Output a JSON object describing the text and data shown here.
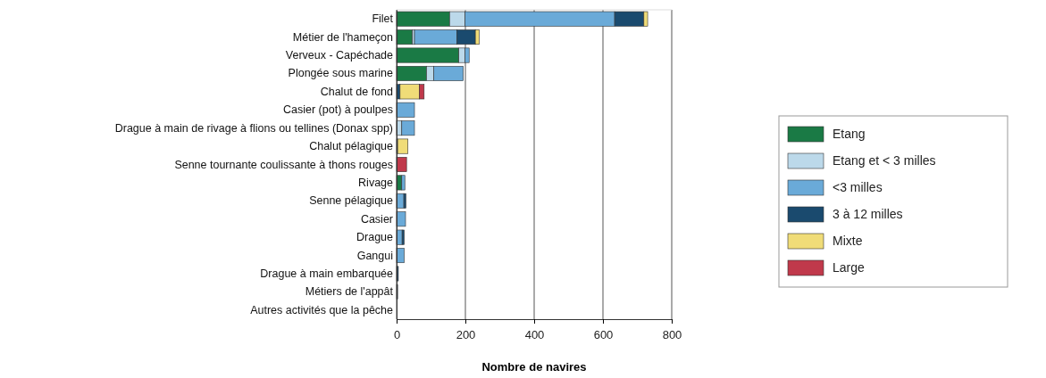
{
  "chart_data": {
    "type": "bar",
    "orientation": "horizontal",
    "stacked": true,
    "xlabel": "Nombre de navires",
    "categories": [
      "Filet",
      "Métier de l'hameçon",
      "Verveux - Capéchade",
      "Plongée sous marine",
      "Chalut de fond",
      "Casier (pot) à poulpes",
      "Drague à main de rivage à flions ou tellines (Donax spp)",
      "Chalut pélagique",
      "Senne tournante coulissante à thons rouges",
      "Rivage",
      "Senne pélagique",
      "Casier",
      "Drague",
      "Gangui",
      "Drague à main embarquée",
      "Métiers de l'appât",
      "Autres activités que la pêche"
    ],
    "series": [
      {
        "name": "Etang",
        "color": "#1a7a45",
        "values": [
          154,
          46,
          181,
          87,
          0,
          0,
          0,
          0,
          0,
          15,
          0,
          0,
          0,
          0,
          0,
          0,
          0
        ]
      },
      {
        "name": "Etang et < 3 milles",
        "color": "#bcd9ea",
        "values": [
          45,
          6,
          18,
          21,
          0,
          0,
          15,
          0,
          0,
          0,
          0,
          0,
          0,
          0,
          0,
          0,
          0
        ]
      },
      {
        "name": "<3 milles",
        "color": "#6aaad8",
        "values": [
          435,
          123,
          12,
          86,
          0,
          52,
          37,
          0,
          0,
          9,
          21,
          26,
          16,
          22,
          0,
          0,
          0
        ]
      },
      {
        "name": "3 à 12 milles",
        "color": "#1a4a6e",
        "values": [
          85,
          54,
          0,
          0,
          10,
          0,
          0,
          3,
          0,
          0,
          6,
          0,
          6,
          0,
          5,
          3,
          0
        ]
      },
      {
        "name": "Mixte",
        "color": "#f0dc78",
        "values": [
          11,
          11,
          0,
          0,
          56,
          0,
          0,
          30,
          0,
          0,
          0,
          0,
          0,
          0,
          0,
          0,
          0
        ]
      },
      {
        "name": "Large",
        "color": "#c0394b",
        "values": [
          0,
          0,
          0,
          0,
          14,
          0,
          0,
          0,
          29,
          0,
          0,
          0,
          0,
          0,
          0,
          0,
          0
        ]
      }
    ],
    "xlim": [
      0,
      800
    ],
    "xticks": [
      0,
      200,
      400,
      600,
      800
    ],
    "grid": "x",
    "legend": "right"
  }
}
